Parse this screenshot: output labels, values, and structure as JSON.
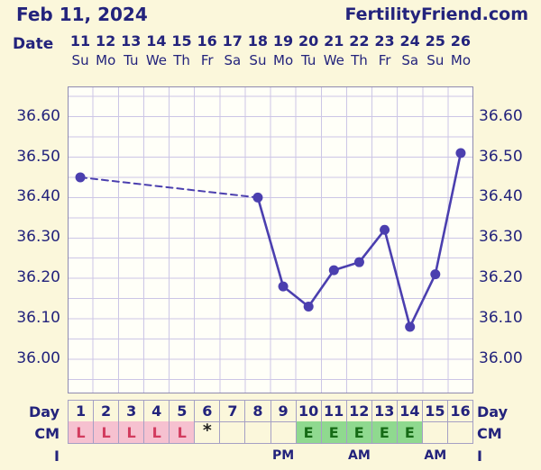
{
  "header": {
    "date": "Feb 11, 2024",
    "brand": "FertilityFriend.com"
  },
  "labels": {
    "date": "Date",
    "day_left": "Day",
    "day_right": "Day",
    "cm_left": "CM",
    "cm_right": "CM",
    "time_left": "I",
    "time_right": "I"
  },
  "colors": {
    "navy": "#23237C",
    "line": "#4B3FAF",
    "grid": "#CCC6E6",
    "plot-bg": "#FFFFF8",
    "plot-border": "#8F8AB0",
    "page-bg": "#FBF7DB",
    "pink": "#F6C1D0",
    "pink-text": "#D23B5E",
    "green": "#8FD98F",
    "green-text": "#156A15",
    "cell-border": "#A5A0C4",
    "star": "#222222"
  },
  "chart_data": {
    "type": "line",
    "dates": [
      "11",
      "12",
      "13",
      "14",
      "15",
      "16",
      "17",
      "18",
      "19",
      "20",
      "21",
      "22",
      "23",
      "24",
      "25",
      "26"
    ],
    "days_of_week": [
      "Su",
      "Mo",
      "Tu",
      "We",
      "Th",
      "Fr",
      "Sa",
      "Su",
      "Mo",
      "Tu",
      "We",
      "Th",
      "Fr",
      "Sa",
      "Su",
      "Mo"
    ],
    "y_ticks": [
      "36.60",
      "36.50",
      "36.40",
      "36.30",
      "36.20",
      "36.10",
      "36.00"
    ],
    "ylim": [
      35.915,
      36.675
    ],
    "grid_step": 0.05,
    "legend": "none",
    "series": [
      {
        "name": "temperature",
        "points": [
          {
            "day": 1,
            "date": "11",
            "value": 36.45
          },
          {
            "day": 8,
            "date": "18",
            "value": 36.4
          },
          {
            "day": 9,
            "date": "19",
            "value": 36.18
          },
          {
            "day": 10,
            "date": "20",
            "value": 36.13
          },
          {
            "day": 11,
            "date": "21",
            "value": 36.22
          },
          {
            "day": 12,
            "date": "22",
            "value": 36.24
          },
          {
            "day": 13,
            "date": "23",
            "value": 36.32
          },
          {
            "day": 14,
            "date": "24",
            "value": 36.08
          },
          {
            "day": 15,
            "date": "25",
            "value": 36.21
          },
          {
            "day": 16,
            "date": "26",
            "value": 36.51
          }
        ],
        "note": "gap between day 1 and day 8 drawn dashed (missing data days 2-7)"
      }
    ]
  },
  "bottom": {
    "day_numbers": [
      "1",
      "2",
      "3",
      "4",
      "5",
      "6",
      "7",
      "8",
      "9",
      "10",
      "11",
      "12",
      "13",
      "14",
      "15",
      "16"
    ],
    "cm_cells": [
      {
        "text": "L",
        "style": "pink"
      },
      {
        "text": "L",
        "style": "pink"
      },
      {
        "text": "L",
        "style": "pink"
      },
      {
        "text": "L",
        "style": "pink"
      },
      {
        "text": "L",
        "style": "pink"
      },
      {
        "text": "*",
        "style": "star"
      },
      {
        "text": "",
        "style": "plain"
      },
      {
        "text": "",
        "style": "plain"
      },
      {
        "text": "",
        "style": "plain"
      },
      {
        "text": "E",
        "style": "green"
      },
      {
        "text": "E",
        "style": "green"
      },
      {
        "text": "E",
        "style": "green"
      },
      {
        "text": "E",
        "style": "green"
      },
      {
        "text": "E",
        "style": "green"
      },
      {
        "text": "",
        "style": "plain"
      },
      {
        "text": "",
        "style": "plain"
      }
    ],
    "time_cells": [
      "",
      "",
      "",
      "",
      "",
      "",
      "",
      "",
      "PM",
      "",
      "",
      "AM",
      "",
      "",
      "AM",
      ""
    ]
  }
}
